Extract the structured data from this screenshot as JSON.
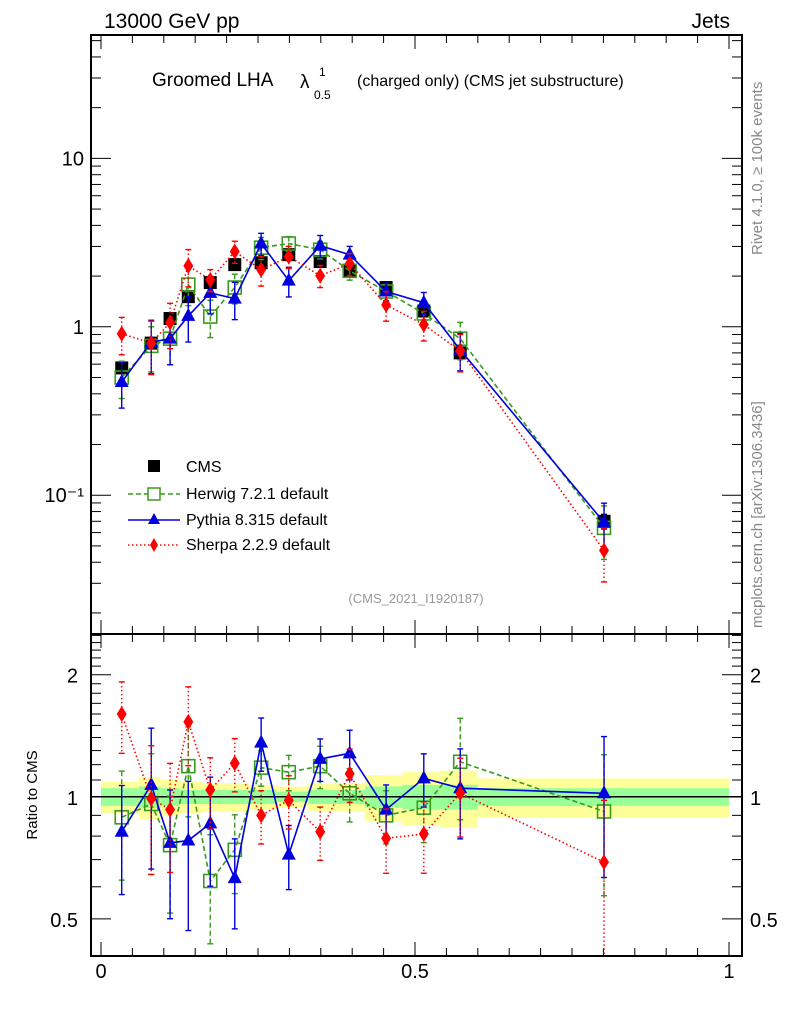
{
  "header": {
    "left": "13000 GeV pp",
    "right": "Jets"
  },
  "side_text": {
    "top": "Rivet 4.1.0, ≥ 100k events",
    "bottom": "mcplots.cern.ch [arXiv:1306.3436]"
  },
  "title": {
    "main": "Groomed LHA",
    "symbol": "λ",
    "superscript": "1",
    "subscript": "0.5",
    "suffix": "(charged only) (CMS jet substructure)"
  },
  "analysis_label": "(CMS_2021_I1920187)",
  "colors": {
    "cms": "#000000",
    "herwig": "#3a9a1e",
    "pythia": "#0000dd",
    "sherpa": "#ff0000",
    "band_outer": "#ffff99",
    "band_inner": "#99ff99"
  },
  "chart_data": [
    {
      "type": "line",
      "panel": "main",
      "title": "Groomed LHA λ^1_0.5 (charged only) (CMS jet substructure)",
      "xlabel": "",
      "ylabel": "",
      "xlim": [
        0,
        1
      ],
      "ylim": [
        0.015,
        54
      ],
      "yscale": "log",
      "yticks": [
        {
          "value": 0.1,
          "label": "10⁻¹"
        },
        {
          "value": 1,
          "label": "1"
        },
        {
          "value": 10,
          "label": "10"
        }
      ],
      "legend_position": "bottom-left",
      "x": [
        0.033,
        0.08,
        0.11,
        0.139,
        0.174,
        0.213,
        0.255,
        0.299,
        0.349,
        0.396,
        0.454,
        0.514,
        0.572,
        0.801
      ],
      "series": [
        {
          "name": "CMS",
          "style": "square-filled",
          "values": [
            0.57,
            0.8,
            1.12,
            1.51,
            1.83,
            2.34,
            2.4,
            2.68,
            2.44,
            2.15,
            1.71,
            1.24,
            0.7,
            0.07
          ]
        },
        {
          "name": "Herwig 7.2.1 default",
          "style": "square-open-dashed",
          "values": [
            0.5,
            0.77,
            0.85,
            1.78,
            1.15,
            1.71,
            2.95,
            3.12,
            2.87,
            2.15,
            1.62,
            1.2,
            0.85,
            0.064
          ]
        },
        {
          "name": "Pythia 8.315 default",
          "style": "triangle-solid",
          "values": [
            0.47,
            0.81,
            0.85,
            1.16,
            1.59,
            1.47,
            3.12,
            1.88,
            3.03,
            2.68,
            1.62,
            1.39,
            0.73,
            0.069
          ]
        },
        {
          "name": "Sherpa 2.2.9 default",
          "style": "diamond-dotted",
          "values": [
            0.91,
            0.8,
            1.06,
            2.3,
            1.9,
            2.8,
            2.18,
            2.61,
            2.01,
            2.37,
            1.35,
            1.03,
            0.72,
            0.047
          ]
        }
      ],
      "errors_rel": {
        "CMS": [
          0.06,
          0.06,
          0.06,
          0.06,
          0.05,
          0.05,
          0.05,
          0.05,
          0.05,
          0.05,
          0.06,
          0.06,
          0.08,
          0.1
        ],
        "Herwig 7.2.1 default": [
          0.25,
          0.3,
          0.3,
          0.25,
          0.25,
          0.2,
          0.15,
          0.1,
          0.12,
          0.12,
          0.12,
          0.15,
          0.25,
          0.35
        ],
        "Pythia 8.315 default": [
          0.3,
          0.35,
          0.3,
          0.3,
          0.25,
          0.25,
          0.15,
          0.2,
          0.15,
          0.12,
          0.12,
          0.15,
          0.25,
          0.3
        ],
        "Sherpa 2.2.9 default": [
          0.25,
          0.35,
          0.3,
          0.25,
          0.15,
          0.15,
          0.2,
          0.15,
          0.15,
          0.15,
          0.2,
          0.2,
          0.25,
          0.35
        ]
      }
    },
    {
      "type": "line",
      "panel": "ratio",
      "ylabel": "Ratio to CMS",
      "xlim": [
        0,
        1
      ],
      "ylim": [
        0.405,
        2.52
      ],
      "yscale": "log",
      "yticks": [
        {
          "value": 0.5,
          "label": "0.5"
        },
        {
          "value": 1,
          "label": "1"
        },
        {
          "value": 2,
          "label": "2"
        }
      ],
      "xticks": [
        {
          "value": 0,
          "label": "0"
        },
        {
          "value": 0.5,
          "label": "0.5"
        },
        {
          "value": 1,
          "label": "1"
        }
      ],
      "x": [
        0.033,
        0.08,
        0.11,
        0.139,
        0.174,
        0.213,
        0.255,
        0.299,
        0.349,
        0.396,
        0.454,
        0.514,
        0.572,
        0.801
      ],
      "series": [
        {
          "name": "Herwig 7.2.1 default",
          "values": [
            0.89,
            0.96,
            0.76,
            1.19,
            0.62,
            0.74,
            1.18,
            1.15,
            1.19,
            1.02,
            0.9,
            0.94,
            1.22,
            0.92
          ]
        },
        {
          "name": "Pythia 8.315 default",
          "values": [
            0.82,
            1.07,
            0.77,
            0.78,
            0.86,
            0.63,
            1.36,
            0.72,
            1.24,
            1.28,
            0.93,
            1.11,
            1.05,
            1.02
          ]
        },
        {
          "name": "Sherpa 2.2.9 default",
          "values": [
            1.6,
            0.99,
            0.93,
            1.53,
            1.04,
            1.21,
            0.9,
            0.98,
            0.82,
            1.14,
            0.79,
            0.81,
            1.02,
            0.69
          ]
        }
      ],
      "errors_rel": {
        "Herwig 7.2.1 default": [
          0.3,
          0.33,
          0.32,
          0.25,
          0.3,
          0.22,
          0.1,
          0.1,
          0.12,
          0.15,
          0.15,
          0.18,
          0.28,
          0.38
        ],
        "Pythia 8.315 default": [
          0.3,
          0.38,
          0.35,
          0.4,
          0.3,
          0.25,
          0.15,
          0.18,
          0.12,
          0.14,
          0.15,
          0.15,
          0.25,
          0.38
        ],
        "Sherpa 2.2.9 default": [
          0.2,
          0.35,
          0.3,
          0.22,
          0.2,
          0.15,
          0.15,
          0.15,
          0.15,
          0.15,
          0.18,
          0.2,
          0.22,
          0.42
        ]
      },
      "band_bins": [
        {
          "x0": 0.0,
          "x1": 0.06,
          "outer": 0.09,
          "inner": 0.05
        },
        {
          "x0": 0.06,
          "x1": 0.095,
          "outer": 0.12,
          "inner": 0.06
        },
        {
          "x0": 0.095,
          "x1": 0.125,
          "outer": 0.1,
          "inner": 0.05
        },
        {
          "x0": 0.125,
          "x1": 0.16,
          "outer": 0.09,
          "inner": 0.04
        },
        {
          "x0": 0.16,
          "x1": 0.2,
          "outer": 0.08,
          "inner": 0.04
        },
        {
          "x0": 0.2,
          "x1": 0.235,
          "outer": 0.08,
          "inner": 0.04
        },
        {
          "x0": 0.235,
          "x1": 0.28,
          "outer": 0.07,
          "inner": 0.04
        },
        {
          "x0": 0.28,
          "x1": 0.33,
          "outer": 0.06,
          "inner": 0.03
        },
        {
          "x0": 0.33,
          "x1": 0.42,
          "outer": 0.08,
          "inner": 0.04
        },
        {
          "x0": 0.42,
          "x1": 0.48,
          "outer": 0.13,
          "inner": 0.06
        },
        {
          "x0": 0.48,
          "x1": 0.54,
          "outer": 0.15,
          "inner": 0.07
        },
        {
          "x0": 0.54,
          "x1": 0.6,
          "outer": 0.16,
          "inner": 0.07
        },
        {
          "x0": 0.6,
          "x1": 1.0,
          "outer": 0.11,
          "inner": 0.05
        }
      ]
    }
  ]
}
